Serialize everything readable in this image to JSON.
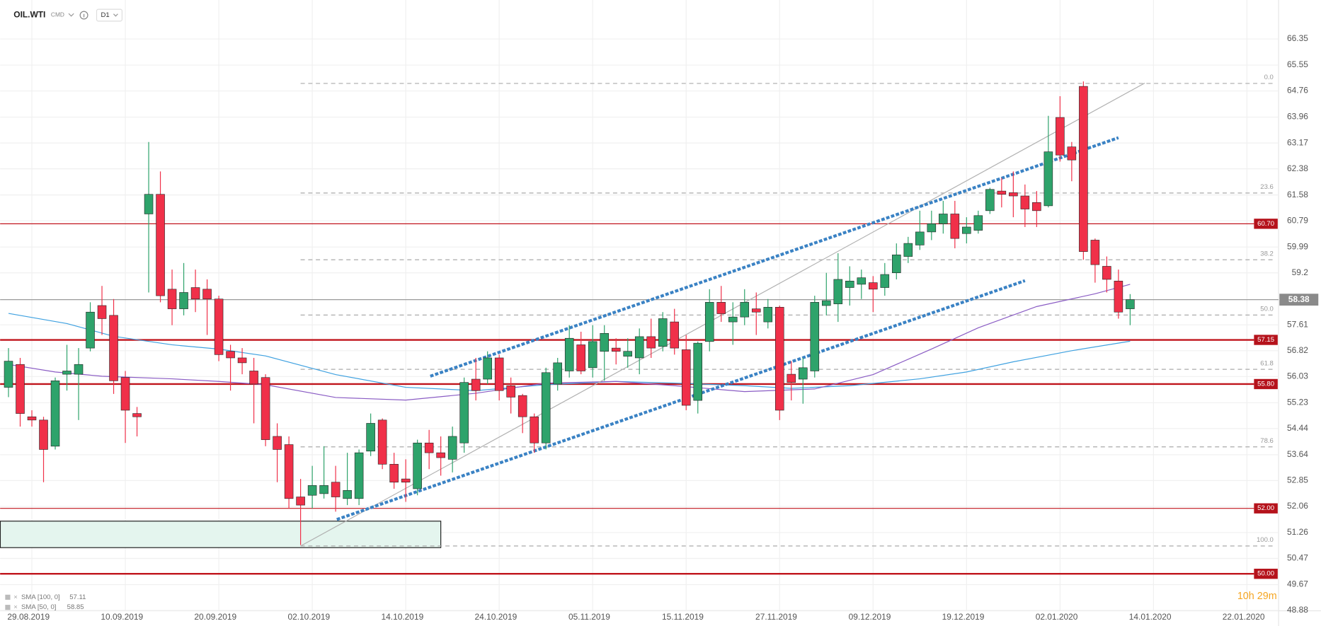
{
  "header": {
    "symbol": "OIL.WTI",
    "market": "CMD",
    "timeframe": "D1",
    "countdown": "10h 29m"
  },
  "chart_data": {
    "type": "candlestick",
    "up_color": "#2ea36b",
    "down_color": "#f03049",
    "categories": [
      null,
      null,
      "29.08.2019",
      null,
      null,
      null,
      null,
      null,
      null,
      null,
      "10.09.2019",
      null,
      null,
      null,
      null,
      null,
      null,
      null,
      "20.09.2019",
      null,
      null,
      null,
      null,
      null,
      null,
      null,
      "02.10.2019",
      null,
      null,
      null,
      null,
      null,
      null,
      null,
      "14.10.2019",
      null,
      null,
      null,
      null,
      null,
      null,
      null,
      "24.10.2019",
      null,
      null,
      null,
      null,
      null,
      null,
      null,
      "05.11.2019",
      null,
      null,
      null,
      null,
      null,
      null,
      null,
      "15.11.2019",
      null,
      null,
      null,
      null,
      null,
      null,
      null,
      "27.11.2019",
      null,
      null,
      null,
      null,
      null,
      null,
      null,
      "09.12.2019",
      null,
      null,
      null,
      null,
      null,
      null,
      null,
      "19.12.2019",
      null,
      null,
      null,
      null,
      null,
      null,
      null,
      "02.01.2020",
      null,
      null,
      null,
      null,
      null,
      null,
      null,
      "14.01.2020",
      null,
      null,
      null,
      null,
      null,
      null,
      null,
      "22.01.2020",
      null,
      null
    ],
    "open": [
      55.7,
      56.4,
      54.8,
      54.7,
      53.9,
      56.1,
      56.1,
      56.9,
      58.2,
      57.9,
      56.0,
      54.9,
      61.0,
      61.6,
      58.7,
      58.1,
      58.75,
      58.7,
      58.4,
      56.8,
      56.6,
      56.2,
      56.0,
      54.2,
      53.95,
      52.35,
      52.4,
      52.45,
      52.8,
      52.3,
      52.3,
      53.75,
      54.7,
      53.35,
      52.9,
      52.6,
      54.0,
      53.7,
      53.5,
      54.0,
      55.95,
      55.95,
      56.6,
      55.75,
      55.45,
      54.8,
      54.0,
      55.8,
      56.2,
      57.0,
      56.3,
      56.8,
      56.9,
      56.65,
      56.6,
      57.25,
      56.95,
      57.7,
      56.85,
      55.3,
      57.1,
      58.3,
      57.7,
      57.85,
      58.1,
      57.7,
      58.15,
      56.1,
      55.95,
      56.2,
      58.2,
      58.25,
      58.75,
      58.85,
      58.9,
      58.75,
      59.2,
      59.7,
      60.05,
      60.45,
      60.7,
      61.0,
      60.4,
      60.5,
      61.1,
      61.7,
      61.65,
      61.55,
      61.35,
      61.25,
      63.95,
      63.05,
      64.9,
      60.2,
      59.4,
      58.95,
      58.1,
      null,
      null,
      null,
      null,
      null,
      null,
      null,
      null,
      null,
      null,
      null,
      null
    ],
    "high": [
      56.9,
      56.6,
      55.0,
      54.8,
      56.0,
      57.0,
      56.9,
      58.3,
      58.8,
      58.4,
      56.2,
      55.1,
      63.2,
      62.3,
      59.3,
      59.5,
      59.3,
      59.0,
      58.5,
      57.0,
      56.9,
      56.6,
      56.1,
      54.6,
      54.2,
      52.9,
      53.3,
      53.9,
      53.3,
      53.7,
      53.8,
      54.9,
      54.75,
      53.7,
      53.5,
      54.1,
      54.4,
      54.2,
      54.5,
      56.0,
      56.6,
      56.8,
      56.7,
      56.0,
      55.5,
      54.9,
      56.3,
      56.6,
      57.6,
      57.4,
      57.6,
      57.6,
      57.2,
      57.2,
      57.5,
      57.8,
      58.0,
      58.1,
      57.3,
      57.1,
      58.7,
      58.8,
      58.3,
      58.7,
      58.6,
      58.4,
      58.2,
      56.5,
      56.6,
      58.5,
      59.2,
      59.8,
      59.4,
      59.3,
      59.1,
      59.5,
      60.1,
      60.3,
      61.1,
      61.1,
      61.4,
      61.4,
      60.9,
      61.1,
      61.8,
      62.1,
      62.3,
      61.9,
      61.7,
      64.0,
      64.6,
      63.2,
      65.05,
      60.25,
      59.7,
      59.3,
      58.55,
      null,
      null,
      null,
      null,
      null,
      null,
      null,
      null,
      null,
      null,
      null,
      null
    ],
    "low": [
      55.4,
      54.5,
      54.5,
      52.8,
      53.8,
      55.6,
      54.7,
      56.8,
      57.3,
      55.5,
      54.0,
      54.2,
      58.6,
      58.3,
      57.6,
      57.9,
      58.0,
      57.3,
      56.5,
      55.6,
      56.1,
      54.6,
      53.9,
      52.8,
      52.0,
      50.88,
      52.0,
      52.3,
      51.9,
      52.1,
      52.1,
      53.6,
      53.2,
      52.6,
      52.2,
      52.4,
      53.2,
      53.0,
      53.1,
      53.7,
      55.3,
      55.8,
      55.3,
      54.9,
      54.3,
      53.7,
      53.8,
      55.6,
      56.0,
      56.1,
      56.0,
      55.9,
      56.4,
      56.3,
      56.1,
      56.6,
      56.8,
      56.7,
      55.0,
      54.9,
      56.8,
      57.7,
      57.0,
      57.6,
      57.3,
      57.5,
      54.7,
      55.3,
      55.2,
      56.0,
      57.9,
      57.7,
      58.2,
      58.4,
      58.0,
      58.5,
      59.0,
      59.5,
      59.9,
      60.2,
      60.4,
      59.95,
      60.1,
      60.4,
      61.0,
      61.2,
      60.9,
      60.6,
      60.6,
      61.2,
      62.6,
      62.0,
      59.6,
      58.9,
      58.6,
      57.8,
      57.6,
      null,
      null,
      null,
      null,
      null,
      null,
      null,
      null,
      null,
      null,
      null,
      null
    ],
    "close": [
      56.5,
      54.9,
      54.7,
      53.8,
      55.9,
      56.2,
      56.4,
      58.0,
      57.8,
      55.9,
      55.0,
      54.8,
      61.6,
      58.5,
      58.1,
      58.6,
      58.4,
      58.4,
      56.7,
      56.6,
      56.45,
      55.8,
      54.1,
      53.8,
      52.3,
      52.1,
      52.7,
      52.7,
      52.35,
      52.55,
      53.7,
      54.6,
      53.35,
      52.8,
      52.8,
      54.0,
      53.7,
      53.55,
      54.2,
      55.85,
      55.6,
      56.6,
      55.6,
      55.4,
      54.8,
      54.0,
      56.15,
      56.45,
      57.2,
      56.2,
      57.1,
      57.35,
      56.8,
      56.8,
      57.25,
      56.9,
      57.8,
      56.9,
      55.15,
      57.05,
      58.3,
      57.95,
      57.85,
      58.3,
      58.0,
      58.15,
      55.0,
      55.85,
      56.3,
      58.3,
      58.35,
      59.0,
      58.95,
      59.05,
      58.7,
      59.15,
      59.75,
      60.1,
      60.45,
      60.7,
      61.0,
      60.25,
      60.6,
      60.95,
      61.75,
      61.6,
      61.55,
      61.15,
      61.1,
      62.9,
      62.8,
      62.65,
      59.85,
      59.45,
      59.0,
      58.0,
      58.38,
      null,
      null,
      null,
      null,
      null,
      null,
      null,
      null,
      null,
      null,
      null,
      null
    ],
    "ylim": [
      48.87,
      67.54
    ],
    "yticks": [
      66.35,
      65.55,
      64.76,
      63.96,
      63.17,
      62.38,
      61.58,
      60.79,
      59.99,
      59.2,
      57.61,
      56.82,
      56.03,
      55.23,
      54.44,
      53.64,
      52.85,
      52.06,
      51.26,
      50.47,
      49.67,
      48.88
    ],
    "grid": true,
    "last_price": 58.38,
    "series": [
      {
        "name": "SMA [100, 0]",
        "color": "#3fa1e0",
        "x": [
          0,
          5,
          9,
          14,
          18,
          22,
          28,
          34,
          40,
          46,
          52,
          57,
          63,
          67,
          72,
          78,
          82,
          86,
          91,
          96
        ],
        "values": [
          57.96,
          57.65,
          57.26,
          57.0,
          56.87,
          56.66,
          56.09,
          55.7,
          55.6,
          55.78,
          55.88,
          55.83,
          55.75,
          55.67,
          55.75,
          55.96,
          56.17,
          56.48,
          56.82,
          57.11
        ]
      },
      {
        "name": "SMA [50, 0]",
        "color": "#8a5cc4",
        "x": [
          0,
          4,
          8,
          14,
          18,
          22,
          28,
          34,
          40,
          46,
          52,
          57,
          63,
          69,
          74,
          79,
          83,
          88,
          93,
          96
        ],
        "values": [
          56.4,
          56.17,
          56.04,
          55.96,
          55.88,
          55.78,
          55.39,
          55.31,
          55.52,
          55.83,
          55.88,
          55.75,
          55.57,
          55.65,
          56.09,
          56.87,
          57.52,
          58.17,
          58.56,
          58.85
        ]
      }
    ],
    "levels": [
      {
        "price": {
          "value": 60.7,
          "label": "60.70"
        },
        "weight": "thin"
      },
      {
        "price": 57.15,
        "weight": "thick"
      },
      {
        "price": {
          "value": 55.8,
          "label": "55.80"
        },
        "weight": "thick"
      },
      {
        "price": {
          "value": 52,
          "label": "52.00"
        },
        "weight": "thin"
      },
      {
        "price": {
          "value": 50,
          "label": "50.00"
        },
        "weight": "thick"
      }
    ],
    "fibonacci": {
      "start": 25,
      "levels": [
        {
          "ratio": {
            "value": 0,
            "label": "0.0"
          },
          "price": 64.99
        },
        {
          "ratio": 23.6,
          "price": 61.64
        },
        {
          "ratio": 38.2,
          "price": 59.6
        },
        {
          "ratio": {
            "value": 50,
            "label": "50.0"
          },
          "price": 57.91
        },
        {
          "ratio": 61.8,
          "price": 56.25
        },
        {
          "ratio": 78.6,
          "price": 53.88
        },
        {
          "ratio": {
            "value": 100,
            "label": "100.0"
          },
          "price": 50.85
        }
      ]
    },
    "trendlines": [
      {
        "x": [
          25,
          97.25
        ],
        "y": [
          50.85,
          65.0
        ],
        "color": "#b0b0b0",
        "style": "solid"
      },
      {
        "x": [
          36.1,
          95
        ],
        "y": [
          56.04,
          63.33
        ],
        "color": "#3a82c4",
        "style": "dashed"
      },
      {
        "x": [
          28.1,
          87
        ],
        "y": [
          51.66,
          58.96
        ],
        "color": "#3a82c4",
        "style": "dashed"
      }
    ],
    "zone": {
      "x": [
        -0.7,
        37
      ],
      "y": [
        50.8,
        51.61
      ],
      "color": "#e4f5ee"
    }
  }
}
